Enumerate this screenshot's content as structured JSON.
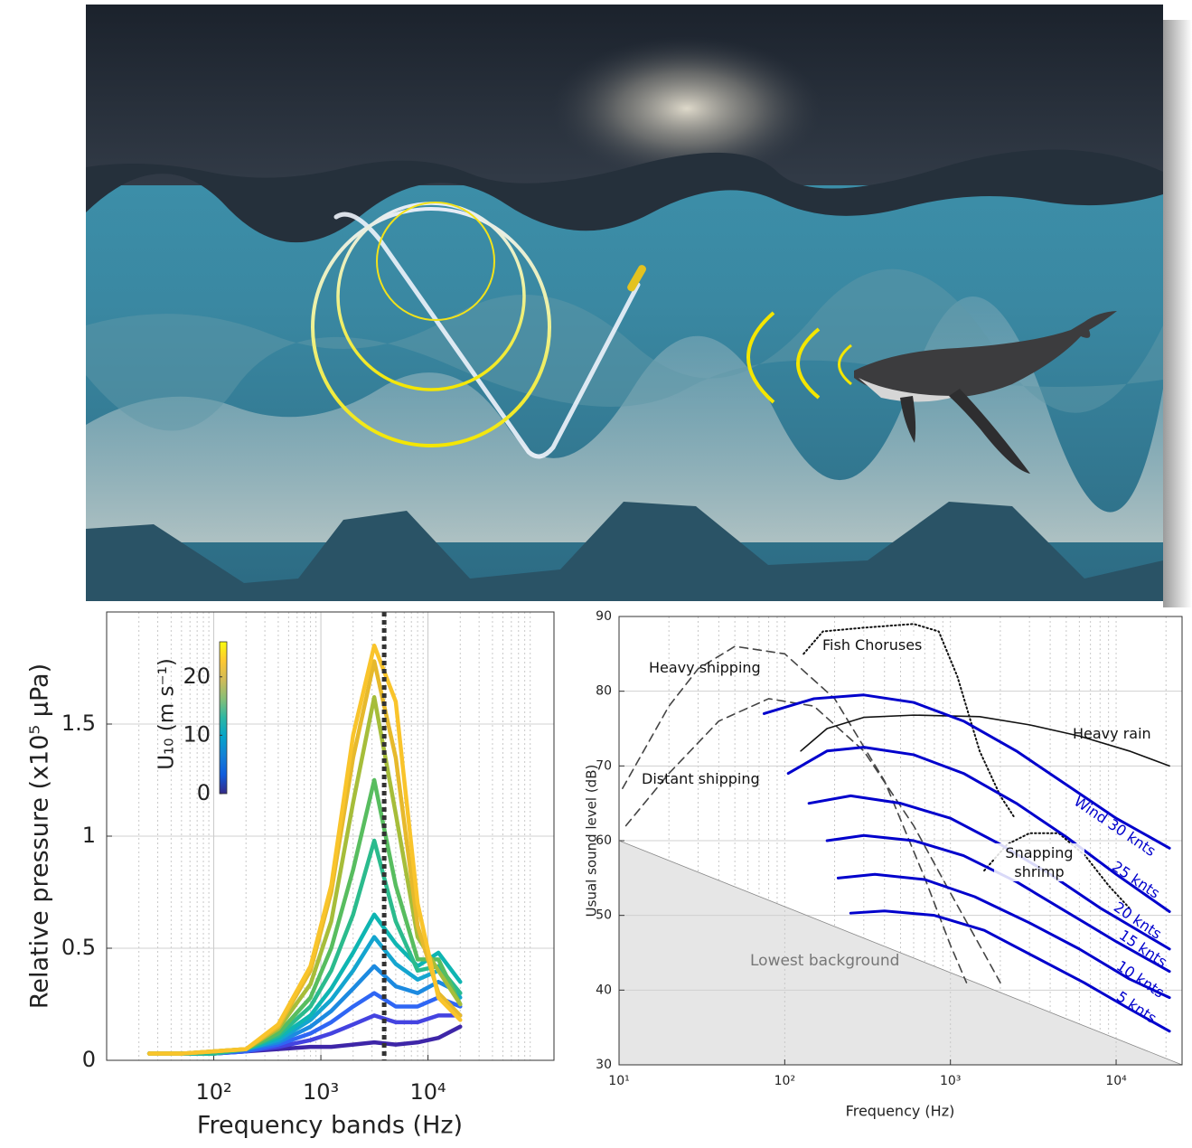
{
  "chart_data": [
    {
      "type": "line",
      "xlabel": "Frequency bands (Hz)",
      "ylabel": "Relative pressure (x10⁵ μPa)",
      "log_x": true,
      "xlim": [
        10,
        150000
      ],
      "ylim": [
        0,
        2
      ],
      "xticks": [
        {
          "value": 100,
          "label": "10²"
        },
        {
          "value": 1000,
          "label": "10³"
        },
        {
          "value": 10000,
          "label": "10⁴"
        }
      ],
      "yticks": [
        0,
        0.5,
        1,
        1.5
      ],
      "grid": true,
      "vline": 3900,
      "colorbar": {
        "label": "U₁₀ (m s⁻¹)",
        "lim": [
          0,
          26
        ],
        "ticks": [
          0,
          10,
          20
        ],
        "colors": [
          "#352a87",
          "#0f5cdd",
          "#1481d6",
          "#06a4ca",
          "#2eb7a4",
          "#87bf77",
          "#d1bb59",
          "#fec832",
          "#f9fb0e"
        ]
      },
      "x": [
        25,
        50,
        100,
        200,
        400,
        800,
        1250,
        2000,
        3150,
        5000,
        8000,
        12500,
        20000
      ],
      "series": [
        {
          "color": "#3e26a8",
          "values": [
            0.03,
            0.03,
            0.03,
            0.04,
            0.05,
            0.06,
            0.06,
            0.07,
            0.08,
            0.07,
            0.08,
            0.1,
            0.15
          ]
        },
        {
          "color": "#4443e0",
          "values": [
            0.03,
            0.03,
            0.03,
            0.04,
            0.06,
            0.09,
            0.12,
            0.16,
            0.2,
            0.17,
            0.17,
            0.2,
            0.2
          ]
        },
        {
          "color": "#2f66f4",
          "values": [
            0.03,
            0.03,
            0.03,
            0.04,
            0.07,
            0.12,
            0.17,
            0.24,
            0.3,
            0.24,
            0.24,
            0.28,
            0.24
          ]
        },
        {
          "color": "#1c8ae0",
          "values": [
            0.03,
            0.03,
            0.03,
            0.05,
            0.08,
            0.15,
            0.22,
            0.32,
            0.42,
            0.33,
            0.3,
            0.35,
            0.3
          ]
        },
        {
          "color": "#14a5cf",
          "values": [
            0.03,
            0.03,
            0.03,
            0.05,
            0.09,
            0.18,
            0.27,
            0.4,
            0.55,
            0.43,
            0.36,
            0.4,
            0.28
          ]
        },
        {
          "color": "#0fb5b2",
          "values": [
            0.03,
            0.03,
            0.03,
            0.05,
            0.1,
            0.2,
            0.32,
            0.48,
            0.65,
            0.52,
            0.42,
            0.48,
            0.35
          ]
        },
        {
          "color": "#2bbb8d",
          "values": [
            0.03,
            0.03,
            0.03,
            0.05,
            0.11,
            0.24,
            0.4,
            0.65,
            0.98,
            0.62,
            0.4,
            0.42,
            0.3
          ]
        },
        {
          "color": "#58bd5f",
          "values": [
            0.03,
            0.03,
            0.04,
            0.05,
            0.12,
            0.28,
            0.5,
            0.85,
            1.25,
            0.78,
            0.45,
            0.45,
            0.25
          ]
        },
        {
          "color": "#a6bd3a",
          "values": [
            0.03,
            0.03,
            0.04,
            0.05,
            0.14,
            0.34,
            0.62,
            1.15,
            1.62,
            1.1,
            0.55,
            0.4,
            0.25
          ]
        },
        {
          "color": "#e6b92c",
          "values": [
            0.03,
            0.03,
            0.04,
            0.05,
            0.15,
            0.4,
            0.75,
            1.35,
            1.78,
            1.35,
            0.6,
            0.3,
            0.2
          ]
        },
        {
          "color": "#f9c42b",
          "values": [
            0.03,
            0.03,
            0.04,
            0.05,
            0.16,
            0.42,
            0.78,
            1.45,
            1.85,
            1.6,
            0.7,
            0.28,
            0.18
          ]
        }
      ]
    },
    {
      "type": "line",
      "xlabel": "Frequency (Hz)",
      "ylabel": "Usual sound level (dB)",
      "log_x": true,
      "xlim": [
        10,
        25000
      ],
      "ylim": [
        30,
        90
      ],
      "xticks": [
        {
          "value": 10,
          "label": "10¹"
        },
        {
          "value": 100,
          "label": "10²"
        },
        {
          "value": 1000,
          "label": "10³"
        },
        {
          "value": 10000,
          "label": "10⁴"
        }
      ],
      "yticks": [
        30,
        40,
        50,
        60,
        70,
        80,
        90
      ],
      "grid": true,
      "series": [
        {
          "name": "Lowest background",
          "color": "#888888",
          "fill": "#e6e6e6",
          "style": "solid",
          "x": [
            10,
            25000
          ],
          "values": [
            60,
            30
          ]
        },
        {
          "name": "Heavy shipping",
          "color": "#444444",
          "style": "dashed",
          "x": [
            10.5,
            20,
            30,
            50,
            100,
            200,
            400,
            700,
            1000,
            1250
          ],
          "values": [
            67,
            78,
            83,
            86,
            85,
            79,
            68,
            55,
            46,
            41
          ]
        },
        {
          "name": "Distant shipping",
          "color": "#444444",
          "style": "dashed",
          "x": [
            11,
            20,
            40,
            80,
            150,
            300,
            600,
            1000,
            1500,
            2000
          ],
          "values": [
            62,
            69,
            76,
            79,
            78,
            72,
            62,
            53,
            46,
            41
          ]
        },
        {
          "name": "Fish Choruses",
          "color": "#111111",
          "style": "dotted",
          "x": [
            130,
            170,
            300,
            600,
            850,
            1100,
            1500,
            2000,
            2450
          ],
          "values": [
            85,
            88,
            88.5,
            89,
            88,
            82,
            72,
            66,
            63
          ]
        },
        {
          "name": "Snapping shrimp",
          "color": "#111111",
          "style": "dotted",
          "x": [
            1600,
            2200,
            3000,
            4500,
            6500,
            9000,
            12000
          ],
          "values": [
            56,
            59.5,
            61,
            61,
            58,
            54,
            51
          ]
        },
        {
          "name": "Heavy rain",
          "color": "#111111",
          "style": "solid",
          "x": [
            125,
            180,
            300,
            600,
            1500,
            3000,
            6000,
            12000,
            21000
          ],
          "values": [
            72,
            75,
            76.5,
            76.8,
            76.6,
            75.5,
            74,
            72,
            70
          ]
        },
        {
          "name": "Wind 30 knts",
          "color": "#0000cc",
          "style": "wind",
          "x": [
            75,
            150,
            300,
            600,
            1200,
            2500,
            5000,
            10000,
            21000
          ],
          "values": [
            77,
            79,
            79.5,
            78.5,
            76,
            72,
            67.5,
            63,
            59
          ]
        },
        {
          "name": "25 knts",
          "color": "#0000cc",
          "style": "wind",
          "x": [
            105,
            180,
            300,
            600,
            1200,
            2500,
            5000,
            10000,
            21000
          ],
          "values": [
            69,
            72,
            72.5,
            71.5,
            69,
            65,
            60.5,
            55.5,
            50.5
          ]
        },
        {
          "name": "20 knts",
          "color": "#0000cc",
          "style": "wind",
          "x": [
            140,
            250,
            500,
            1000,
            2000,
            4000,
            8000,
            21000
          ],
          "values": [
            65,
            66,
            65,
            63,
            59.5,
            55.5,
            51,
            45.5
          ]
        },
        {
          "name": "15 knts",
          "color": "#0000cc",
          "style": "wind",
          "x": [
            180,
            300,
            600,
            1200,
            2500,
            5000,
            10000,
            21000
          ],
          "values": [
            60,
            60.7,
            60,
            58,
            54.5,
            50.5,
            46.5,
            42.5
          ]
        },
        {
          "name": "10 knts",
          "color": "#0000cc",
          "style": "wind",
          "x": [
            210,
            350,
            700,
            1400,
            3000,
            6000,
            12000,
            21000
          ],
          "values": [
            55,
            55.5,
            54.8,
            52.5,
            49,
            45.5,
            41.5,
            39
          ]
        },
        {
          "name": "5 knts",
          "color": "#0000cc",
          "style": "wind",
          "x": [
            250,
            400,
            800,
            1600,
            3200,
            6400,
            12000,
            21000
          ],
          "values": [
            50.3,
            50.6,
            50,
            48,
            44.5,
            41,
            37.5,
            34.5
          ]
        }
      ]
    }
  ]
}
